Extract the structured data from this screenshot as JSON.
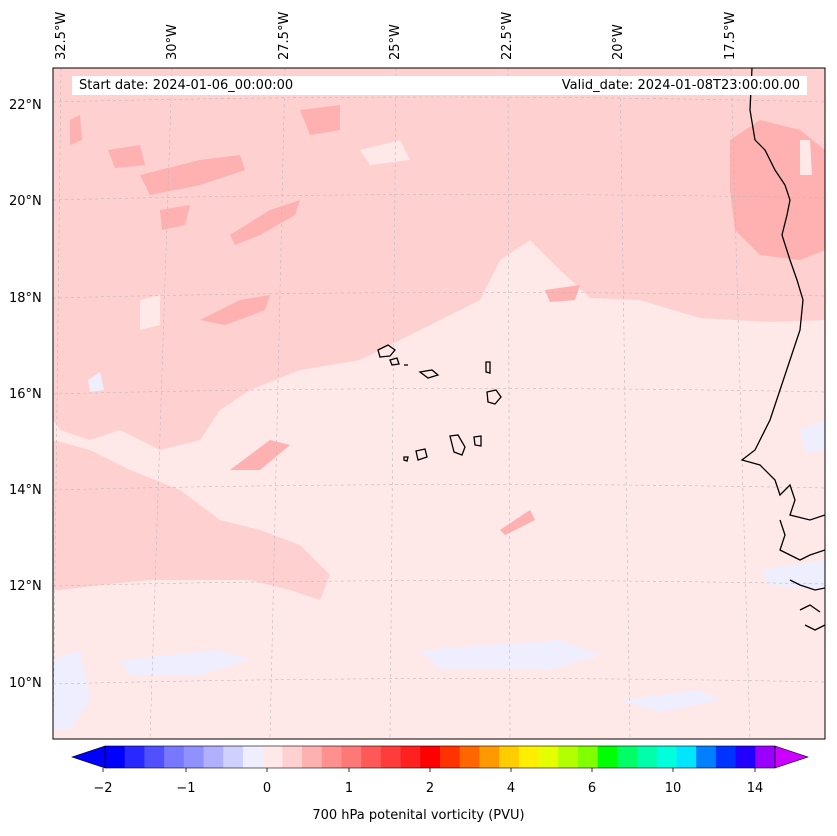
{
  "header": {
    "start_date": "Start date: 2024-01-06_00:00:00",
    "valid_date": "Valid_date: 2024-01-08T23:00:00.00"
  },
  "map": {
    "longitude_labels": [
      "32.5°W",
      "30°W",
      "27.5°W",
      "25°W",
      "22.5°W",
      "20°W",
      "17.5°W"
    ],
    "latitude_labels": [
      "22°N",
      "20°N",
      "18°N",
      "16°N",
      "14°N",
      "12°N",
      "10°N"
    ],
    "features": [
      "Cape Verde islands",
      "West African coastline"
    ]
  },
  "colorbar": {
    "title": "700 hPa potenital vorticity (PVU)",
    "tick_labels": [
      "−2",
      "−1",
      "0",
      "1",
      "2",
      "4",
      "6",
      "10",
      "14"
    ],
    "levels": [
      -2,
      -1.75,
      -1.5,
      -1.25,
      -1,
      -0.75,
      -0.5,
      -0.25,
      0,
      0.25,
      0.5,
      0.75,
      1,
      1.25,
      1.5,
      1.75,
      2,
      2.5,
      3,
      3.5,
      4,
      4.5,
      5,
      5.5,
      6,
      7,
      8,
      9,
      10,
      11,
      12,
      13,
      14,
      15
    ],
    "colors": [
      "#0000ff",
      "#2828ff",
      "#5050ff",
      "#7878ff",
      "#9090ff",
      "#b0b0ff",
      "#d0d0ff",
      "#eeeeff",
      "#ffe8e8",
      "#ffd0d0",
      "#ffb0b0",
      "#ff9090",
      "#ff7878",
      "#ff5858",
      "#ff3c3c",
      "#ff2020",
      "#ff0000",
      "#ff3300",
      "#ff6600",
      "#ff9900",
      "#ffcc00",
      "#ffee00",
      "#e6ff00",
      "#b3ff00",
      "#80ff00",
      "#00ff00",
      "#00ff66",
      "#00ffaa",
      "#00ffdd",
      "#00e6ff",
      "#0080ff",
      "#0033ff",
      "#2200ff",
      "#9900ff"
    ],
    "under_color": "#0000ff",
    "over_color": "#cc00ff"
  },
  "colors": {
    "background_field": "#ffe8e8",
    "light_pink": "#ffd0d0",
    "medium_pink": "#ffb0b0",
    "pale_blue": "#eeeeff",
    "coastline": "#000000",
    "gridline": "#bbbbbb"
  }
}
